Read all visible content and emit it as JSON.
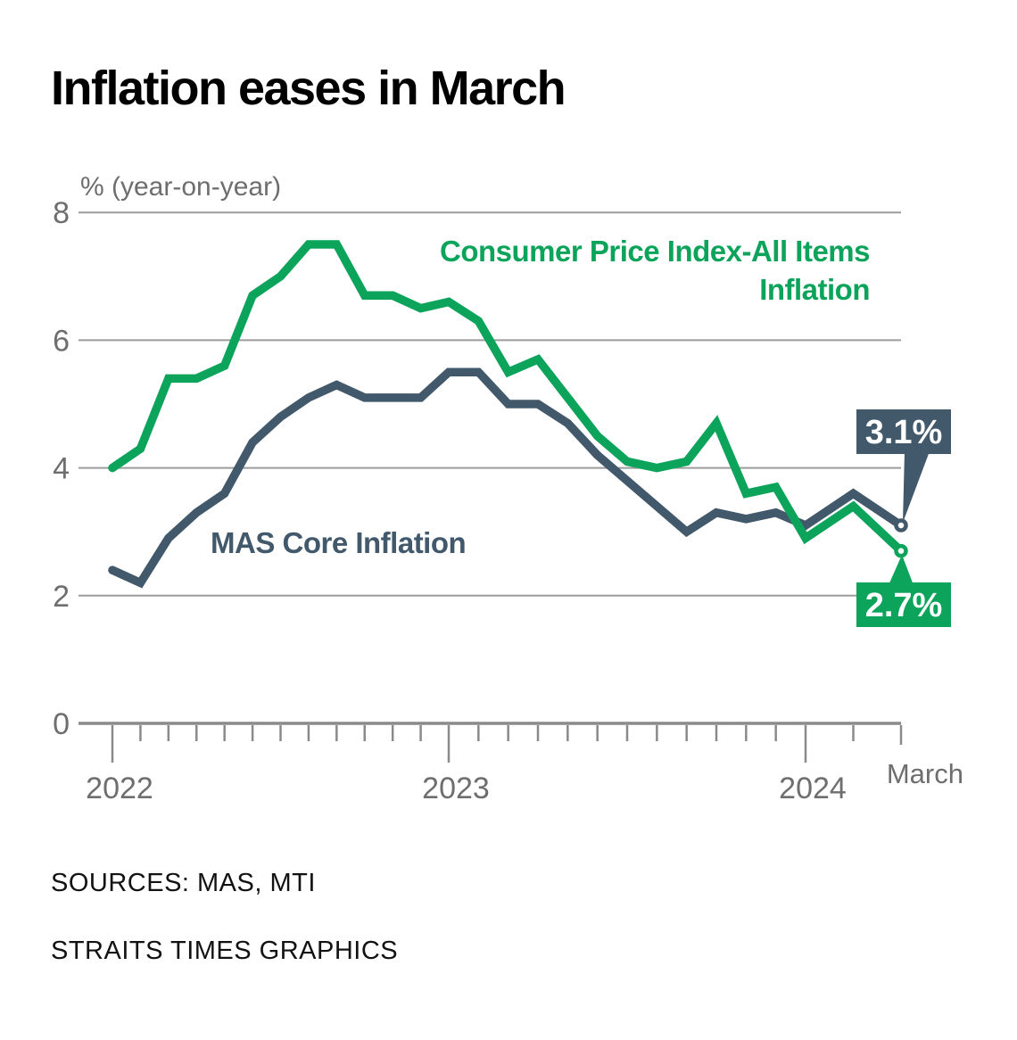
{
  "chart_data": {
    "type": "line",
    "title": "Inflation eases in March",
    "unit_label": "% (year-on-year)",
    "x": [
      "Jan 2022",
      "Feb 2022",
      "Mar 2022",
      "Apr 2022",
      "May 2022",
      "Jun 2022",
      "Jul 2022",
      "Aug 2022",
      "Sep 2022",
      "Oct 2022",
      "Nov 2022",
      "Dec 2022",
      "Jan 2023",
      "Feb 2023",
      "Mar 2023",
      "Apr 2023",
      "May 2023",
      "Jun 2023",
      "Jul 2023",
      "Aug 2023",
      "Sep 2023",
      "Oct 2023",
      "Nov 2023",
      "Dec 2023",
      "Jan 2024",
      "Feb 2024",
      "Mar 2024"
    ],
    "series": [
      {
        "name": "MAS Core Inflation",
        "color": "#42586b",
        "values": [
          2.4,
          2.2,
          2.9,
          3.3,
          3.6,
          4.4,
          4.8,
          5.1,
          5.3,
          5.1,
          5.1,
          5.1,
          5.5,
          5.5,
          5.0,
          5.0,
          4.7,
          4.2,
          3.8,
          3.4,
          3.0,
          3.3,
          3.2,
          3.3,
          3.1,
          3.6,
          3.1
        ],
        "final_label": "3.1%"
      },
      {
        "name": "Consumer Price Index-All Items Inflation",
        "color": "#0ca35b",
        "values": [
          4.0,
          4.3,
          5.4,
          5.4,
          5.6,
          6.7,
          7.0,
          7.5,
          7.5,
          6.7,
          6.7,
          6.5,
          6.6,
          6.3,
          5.5,
          5.7,
          5.1,
          4.5,
          4.1,
          4.0,
          4.1,
          4.7,
          3.6,
          3.7,
          2.9,
          3.4,
          2.7
        ],
        "final_label": "2.7%"
      }
    ],
    "ylim": [
      0,
      8
    ],
    "yticks": [
      8,
      6,
      4,
      2,
      0
    ],
    "x_year_ticks": [
      {
        "index": 0,
        "label": "2022"
      },
      {
        "index": 12,
        "label": "2023"
      },
      {
        "index": 24,
        "label": "2024"
      }
    ],
    "x_end_label": "March",
    "grid": "horizontal gridlines at 2,4,6,8",
    "legend": "inline series labels"
  },
  "annotations": {
    "cpi_label_line1": "Consumer Price Index-All Items",
    "cpi_label_line2": "Inflation",
    "core_label": "MAS Core Inflation",
    "core_final": "3.1%",
    "cpi_final": "2.7%"
  },
  "footer": {
    "sources": "SOURCES: MAS, MTI",
    "credit": "STRAITS TIMES GRAPHICS"
  },
  "colors": {
    "cpi_green": "#0ca35b",
    "core_slate": "#42586b",
    "grid": "#9c9c9c",
    "axis": "#8a8a8a",
    "axis_text": "#6e6e6e",
    "badge_text": "#ffffff",
    "title_text": "#000000"
  }
}
